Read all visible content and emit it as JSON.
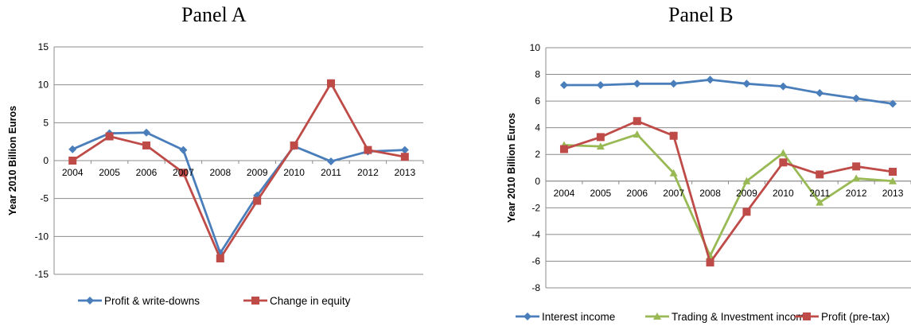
{
  "chart_data": [
    {
      "type": "line",
      "title": "Panel A",
      "ylabel": "Year 2010 Billion Euros",
      "xlabel": "",
      "categories": [
        "2004",
        "2005",
        "2006",
        "2007",
        "2008",
        "2009",
        "2010",
        "2011",
        "2012",
        "2013"
      ],
      "ylim": [
        -15,
        15
      ],
      "yticks": [
        -15,
        -10,
        -5,
        0,
        5,
        10,
        15
      ],
      "grid": true,
      "legend_position": "bottom",
      "series": [
        {
          "name": "Profit & write-downs",
          "color": "#4a7ebb",
          "marker": "diamond",
          "values": [
            1.5,
            3.6,
            3.7,
            1.4,
            -12.2,
            -4.6,
            1.9,
            -0.1,
            1.2,
            1.4
          ]
        },
        {
          "name": "Change in equity",
          "color": "#be4b48",
          "marker": "square",
          "values": [
            0.0,
            3.2,
            2.0,
            -1.6,
            -12.9,
            -5.3,
            2.0,
            10.2,
            1.4,
            0.5
          ]
        }
      ]
    },
    {
      "type": "line",
      "title": "Panel B",
      "ylabel": "Year 2010 Billion Euros",
      "xlabel": "",
      "categories": [
        "2004",
        "2005",
        "2006",
        "2007",
        "2008",
        "2009",
        "2010",
        "2011",
        "2012",
        "2013"
      ],
      "ylim": [
        -8,
        10
      ],
      "yticks": [
        -8,
        -6,
        -4,
        -2,
        0,
        2,
        4,
        6,
        8,
        10
      ],
      "grid": true,
      "legend_position": "bottom",
      "series": [
        {
          "name": "Interest income",
          "color": "#4a7ebb",
          "marker": "diamond",
          "values": [
            7.2,
            7.2,
            7.3,
            7.3,
            7.6,
            7.3,
            7.1,
            6.6,
            6.2,
            5.8
          ]
        },
        {
          "name": "Trading & Investment income",
          "color": "#98b954",
          "marker": "triangle",
          "values": [
            2.7,
            2.6,
            3.5,
            0.6,
            -5.6,
            0.0,
            2.1,
            -1.6,
            0.2,
            0.0
          ]
        },
        {
          "name": "Profit (pre-tax)",
          "color": "#be4b48",
          "marker": "square",
          "values": [
            2.4,
            3.3,
            4.5,
            3.4,
            -6.1,
            -2.3,
            1.4,
            0.5,
            1.1,
            0.7
          ]
        }
      ]
    }
  ]
}
